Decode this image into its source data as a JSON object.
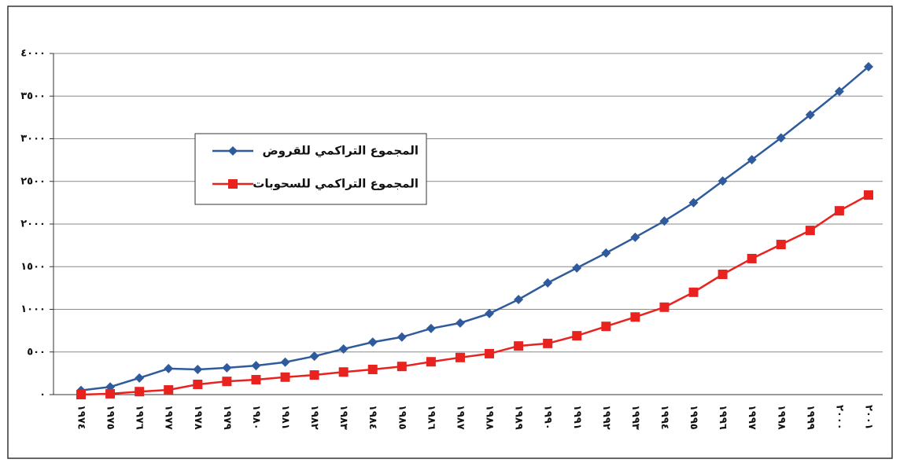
{
  "chart_data": {
    "type": "line",
    "categories": [
      "١٩٧٤",
      "١٩٧٥",
      "١٩٧٦",
      "١٩٧٧",
      "١٩٧٨",
      "١٩٧٩",
      "١٩٨٠",
      "١٩٨١",
      "١٩٨٢",
      "١٩٨٣",
      "١٩٨٤",
      "١٩٨٥",
      "١٩٨٦",
      "١٩٨٧",
      "١٩٨٨",
      "١٩٨٩",
      "١٩٩٠",
      "١٩٩١",
      "١٩٩٢",
      "١٩٩٣",
      "١٩٩٤",
      "١٩٩٥",
      "١٩٩٦",
      "١٩٩٧",
      "١٩٩٨",
      "١٩٩٩",
      "٢٠٠٠",
      "٢٠٠١"
    ],
    "series": [
      {
        "name": "المجموع التراكمي للقروض",
        "color": "#2f5b9d",
        "marker": "diamond",
        "values": [
          50,
          90,
          195,
          305,
          295,
          315,
          340,
          380,
          450,
          535,
          615,
          675,
          775,
          840,
          950,
          1115,
          1310,
          1485,
          1660,
          1845,
          2035,
          2250,
          2505,
          2755,
          3010,
          3280,
          3555,
          3845
        ]
      },
      {
        "name": "المجموع التراكمي للسحوبات",
        "color": "#e8231f",
        "marker": "square",
        "values": [
          0,
          10,
          35,
          55,
          120,
          155,
          175,
          205,
          230,
          265,
          295,
          330,
          385,
          435,
          480,
          570,
          600,
          690,
          800,
          910,
          1025,
          1200,
          1410,
          1595,
          1760,
          1925,
          2155,
          2340
        ]
      }
    ],
    "ylim": [
      0,
      4000
    ],
    "yticks": [
      {
        "value": 0,
        "label": "٠"
      },
      {
        "value": 500,
        "label": "٥٠٠"
      },
      {
        "value": 1000,
        "label": "١٠٠٠"
      },
      {
        "value": 1500,
        "label": "١٥٠٠"
      },
      {
        "value": 2000,
        "label": "٢٠٠٠"
      },
      {
        "value": 2500,
        "label": "٢٥٠٠"
      },
      {
        "value": 3000,
        "label": "٣٠٠٠"
      },
      {
        "value": 3500,
        "label": "٣٥٠٠"
      },
      {
        "value": 4000,
        "label": "٤٠٠٠"
      }
    ],
    "grid": true
  }
}
